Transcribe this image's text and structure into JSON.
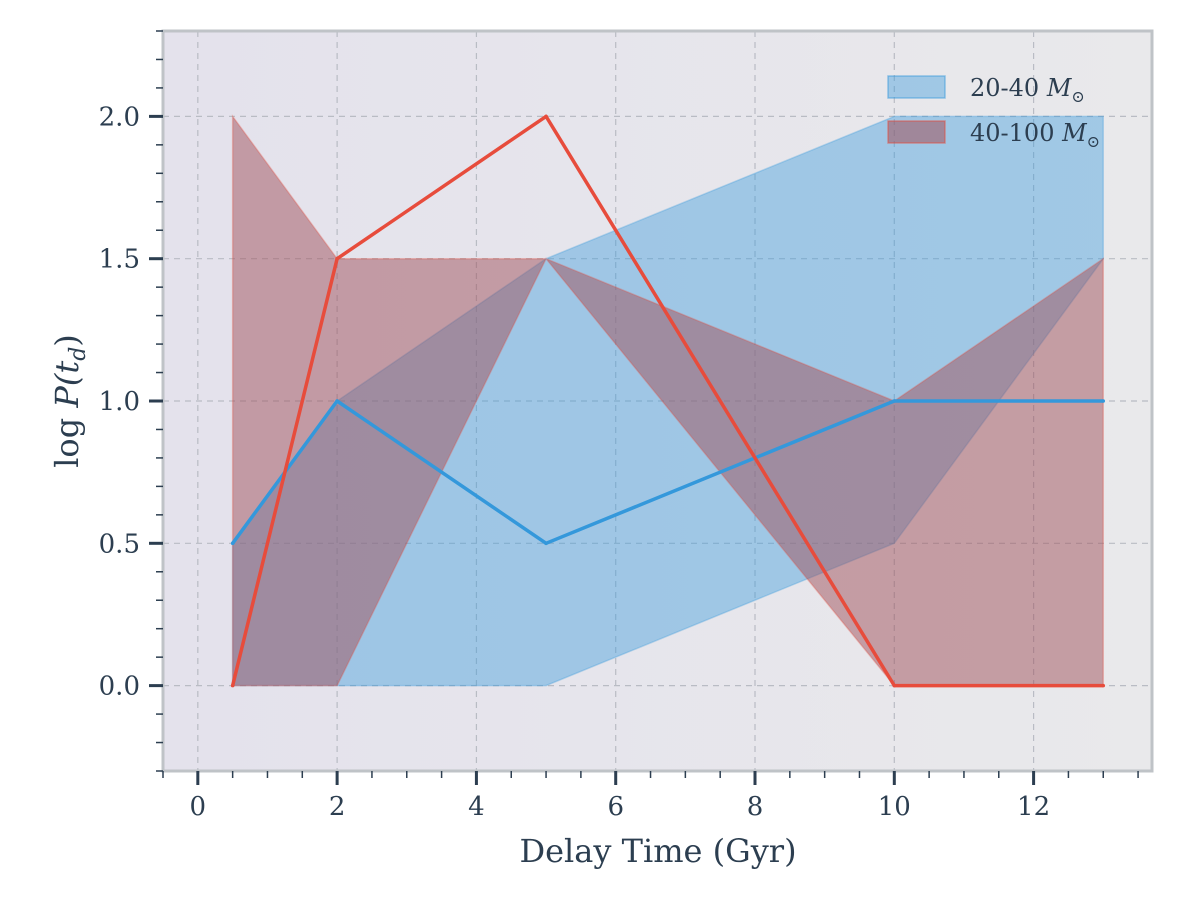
{
  "chart_data": {
    "type": "area",
    "xlabel": "Delay Time (Gyr)",
    "ylabel": {
      "prefix": "log ",
      "main": "P(t",
      "sub": "d",
      "suffix": ")"
    },
    "xlim": [
      -0.5,
      13.7
    ],
    "ylim": [
      -0.3,
      2.3
    ],
    "x_ticks": [
      0,
      2,
      4,
      6,
      8,
      10,
      12
    ],
    "y_ticks": [
      0.0,
      0.5,
      1.0,
      1.5,
      2.0
    ],
    "x_tick_labels": [
      "0",
      "2",
      "4",
      "6",
      "8",
      "10",
      "12"
    ],
    "y_tick_labels": [
      "0.0",
      "0.5",
      "1.0",
      "1.5",
      "2.0"
    ],
    "grid": true,
    "legend_position": "top-right",
    "series": [
      {
        "name": "20-40 M⊙",
        "legend_text": "20-40 ",
        "legend_math": "M",
        "legend_sub": "⊙",
        "color": "#3498db",
        "x": [
          0.5,
          2,
          5,
          10,
          13
        ],
        "values": [
          0.5,
          1.0,
          0.5,
          1.0,
          1.0
        ],
        "lower": [
          0.0,
          0.0,
          0.0,
          0.5,
          1.5
        ],
        "upper": [
          0.5,
          1.0,
          1.5,
          2.0,
          2.0
        ]
      },
      {
        "name": "40-100 M⊙",
        "legend_text": "40-100 ",
        "legend_math": "M",
        "legend_sub": "⊙",
        "color": "#e74c3c",
        "fill_color": "#a0525c",
        "x": [
          0.5,
          2,
          5,
          10,
          13
        ],
        "values": [
          0.0,
          1.5,
          2.0,
          0.0,
          0.0
        ],
        "lower": [
          0.0,
          0.0,
          1.5,
          0.0,
          0.0
        ],
        "upper": [
          2.0,
          1.5,
          1.5,
          1.0,
          1.5
        ]
      }
    ]
  }
}
